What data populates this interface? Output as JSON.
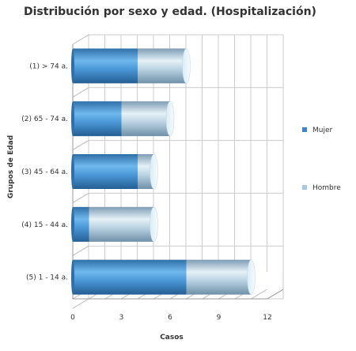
{
  "chart_data": {
    "type": "bar",
    "orientation": "horizontal",
    "stacked": true,
    "style": "3d-cylinder",
    "title": "Distribución por sexo y edad. (Hospitalización)",
    "xlabel": "Casos",
    "ylabel": "Grupos de Edad",
    "categories": [
      "(1) > 74 a.",
      "(2) 65 - 74 a.",
      "(3) 45 - 64 a.",
      "(4) 15 - 44 a.",
      "(5) 1 - 14 a."
    ],
    "series": [
      {
        "name": "Mujer",
        "values": [
          4,
          3,
          4,
          1,
          7
        ],
        "color": "#3d87c8"
      },
      {
        "name": "Hombre",
        "values": [
          3,
          3,
          1,
          4,
          4
        ],
        "color": "#a8c8dc"
      }
    ],
    "xlim": [
      0,
      12
    ],
    "xticks": [
      0,
      3,
      6,
      9,
      12
    ],
    "grid": true,
    "legend_position": "right"
  }
}
